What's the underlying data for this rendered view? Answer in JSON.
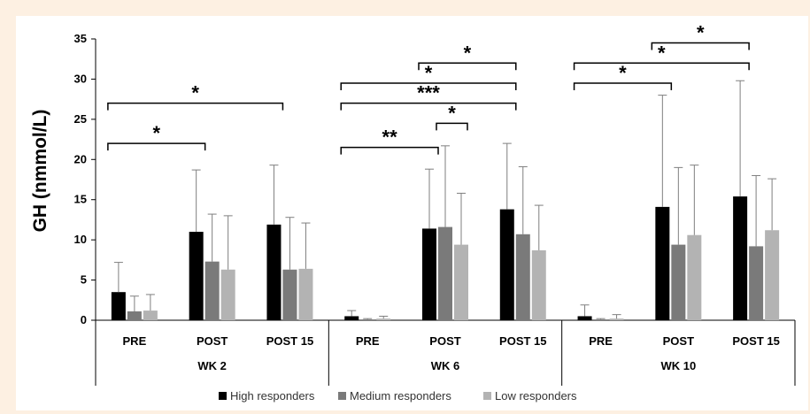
{
  "chart_data": {
    "type": "bar",
    "ylabel": "GH (nmmol/L)",
    "ylim": [
      0,
      35
    ],
    "yticks": [
      "0",
      "5",
      "10",
      "15",
      "20",
      "25",
      "30",
      "35"
    ],
    "grid": false,
    "legend_position": "bottom",
    "groups": [
      {
        "label": "WK 2",
        "categories": [
          "PRE",
          "POST",
          "POST 15"
        ]
      },
      {
        "label": "WK 6",
        "categories": [
          "PRE",
          "POST",
          "POST 15"
        ]
      },
      {
        "label": "WK 10",
        "categories": [
          "PRE",
          "POST",
          "POST 15"
        ]
      }
    ],
    "series": [
      {
        "name": "High responders",
        "color": "#000000",
        "values": [
          3.5,
          11.0,
          11.9,
          0.5,
          11.4,
          13.8,
          0.5,
          14.1,
          15.4
        ],
        "error_upper": [
          7.2,
          18.7,
          19.3,
          1.2,
          18.8,
          22.0,
          1.9,
          28.0,
          29.8
        ]
      },
      {
        "name": "Medium responders",
        "color": "#7a7a7a",
        "values": [
          1.1,
          7.3,
          6.3,
          0.1,
          11.6,
          10.7,
          0.1,
          9.4,
          9.2
        ],
        "error_upper": [
          3.0,
          13.2,
          12.8,
          0.2,
          21.7,
          19.1,
          0.2,
          19.0,
          18.0
        ]
      },
      {
        "name": "Low responders",
        "color": "#b3b3b3",
        "values": [
          1.2,
          6.3,
          6.4,
          0.2,
          9.4,
          8.7,
          0.2,
          10.6,
          11.2
        ],
        "error_upper": [
          3.2,
          13.0,
          12.1,
          0.5,
          15.8,
          14.3,
          0.7,
          19.3,
          17.6
        ]
      }
    ],
    "annotations": [
      {
        "label": "*",
        "from_category": 0,
        "to_category": 1,
        "y": 22.0
      },
      {
        "label": "*",
        "from_category": 0,
        "to_category": 2,
        "y": 27.0
      },
      {
        "label": "**",
        "from_category": 3,
        "to_category": 4,
        "y": 21.5
      },
      {
        "label": "*",
        "from_category": 4,
        "to_category": 4,
        "y": 24.5
      },
      {
        "label": "***",
        "from_category": 3,
        "to_category": 5,
        "y": 27.0
      },
      {
        "label": "*",
        "from_category": 3,
        "to_category": 5,
        "y": 29.5
      },
      {
        "label": "*",
        "from_category": 4,
        "to_category": 5,
        "y": 32.0
      },
      {
        "label": "*",
        "from_category": 6,
        "to_category": 7,
        "y": 29.5
      },
      {
        "label": "*",
        "from_category": 6,
        "to_category": 8,
        "y": 32.0
      },
      {
        "label": "*",
        "from_category": 7,
        "to_category": 8,
        "y": 34.5
      }
    ]
  }
}
